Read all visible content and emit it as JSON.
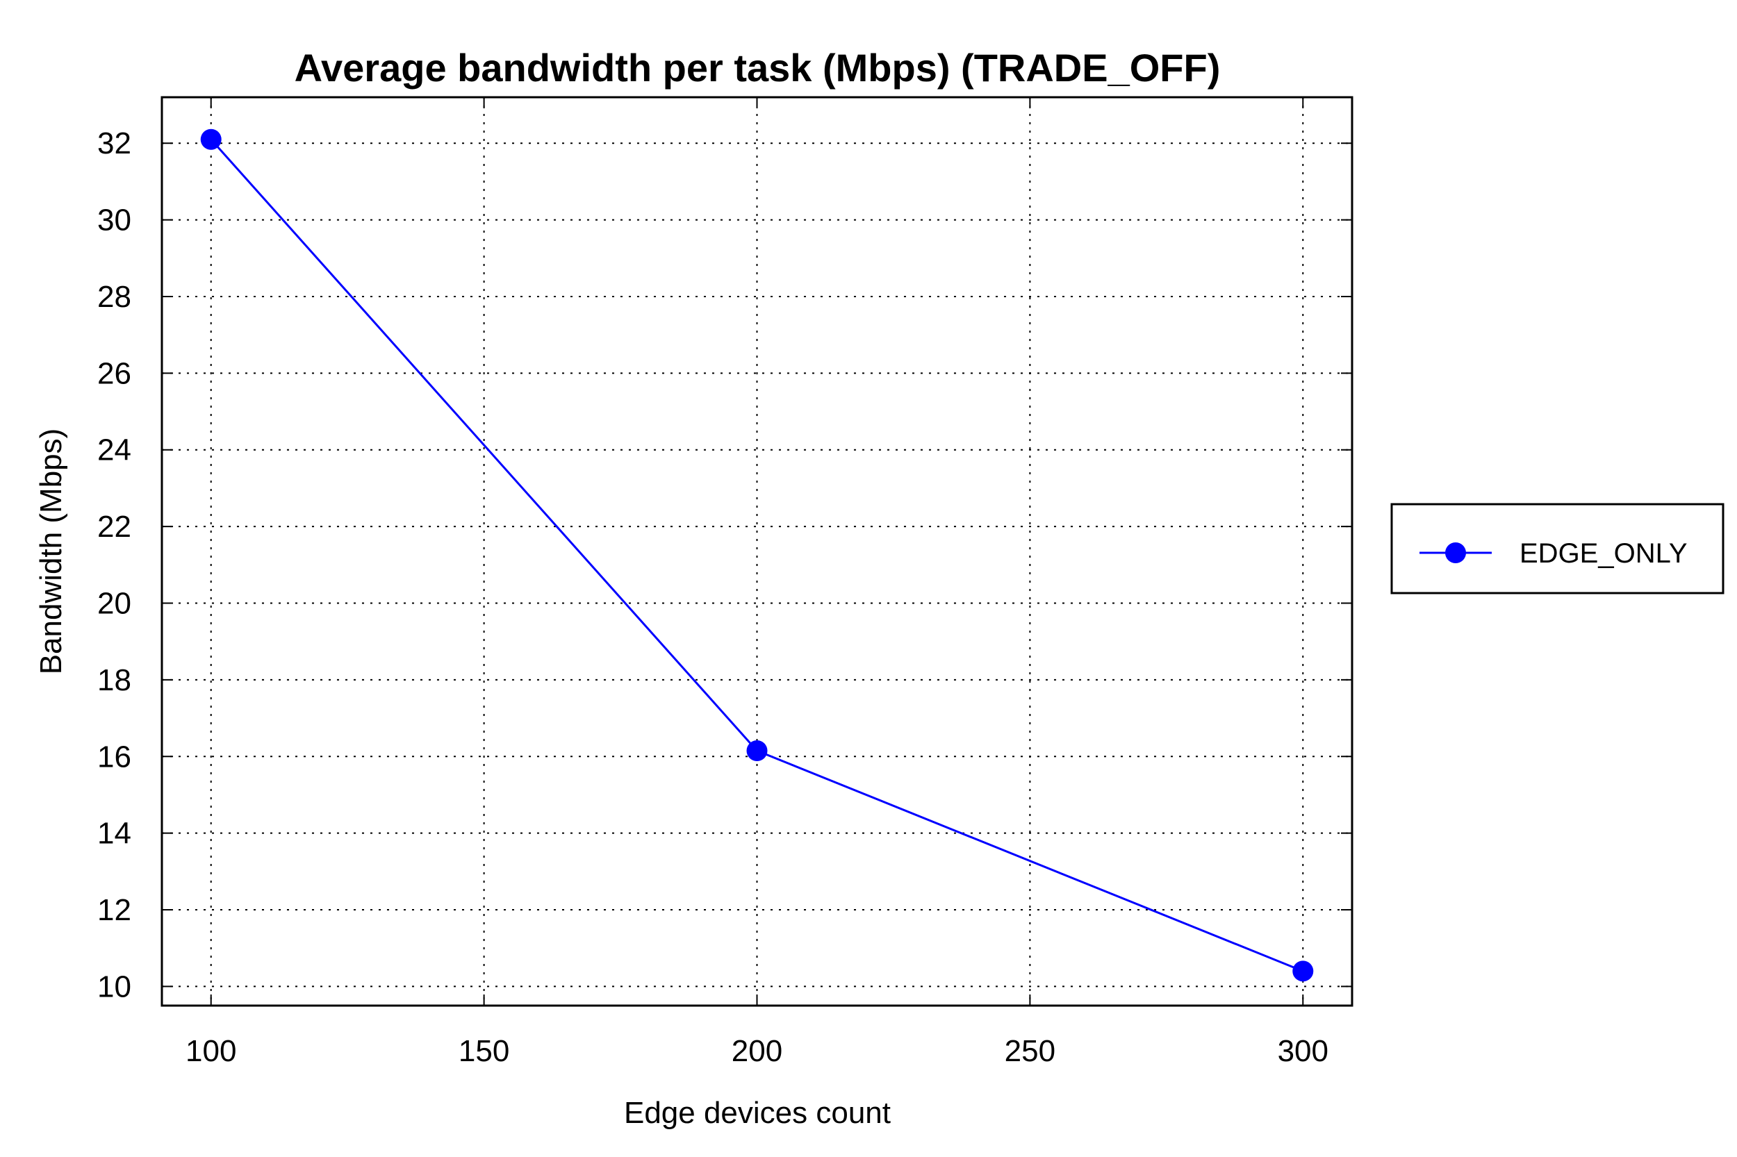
{
  "chart_data": {
    "type": "line",
    "title": "Average bandwidth per task (Mbps) (TRADE_OFF)",
    "xlabel": "Edge devices count",
    "ylabel": "Bandwidth (Mbps)",
    "xlim": [
      91,
      309
    ],
    "ylim": [
      9.5,
      33.2
    ],
    "xticks": [
      100,
      150,
      200,
      250,
      300
    ],
    "yticks": [
      10,
      12,
      14,
      16,
      18,
      20,
      22,
      24,
      26,
      28,
      30,
      32
    ],
    "grid": true,
    "legend_position": "right",
    "series": [
      {
        "name": "EDGE_ONLY",
        "color": "#0000ff",
        "marker": "circle",
        "x": [
          100,
          200,
          300
        ],
        "y": [
          32.1,
          16.15,
          10.4
        ]
      }
    ]
  }
}
